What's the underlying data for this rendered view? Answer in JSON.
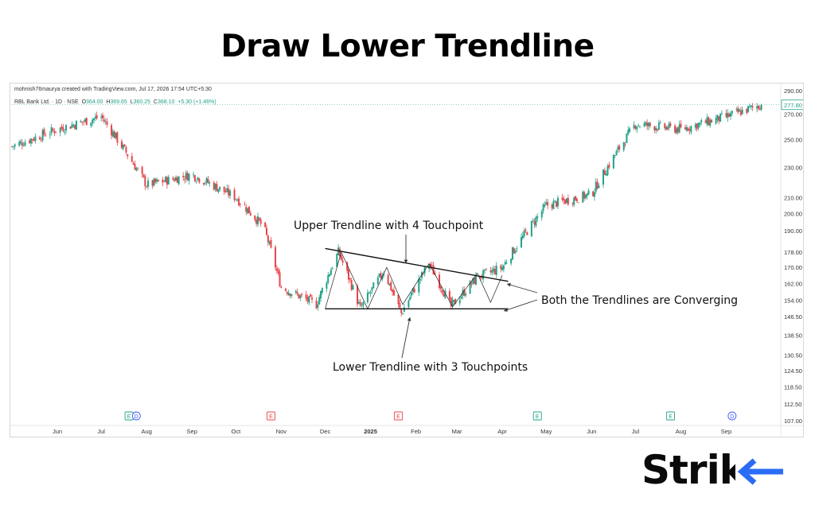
{
  "title": "Draw Lower Trendline",
  "credit": "mohnish76mauryа created with TradingView.com, Jul 17, 2026 17:54 UTC+5:30",
  "symbol": {
    "name": "RBL Bank Ltd. · 1D · NSE",
    "open_label": "O",
    "open": "364.00",
    "high_label": "H",
    "high": "369.65",
    "low_label": "L",
    "low": "360.25",
    "close_label": "C",
    "close": "368.10",
    "change": "+5.30 (+1.46%)"
  },
  "colors": {
    "up": "#22a28a",
    "down": "#e8454a",
    "trendline": "#111111",
    "arrow": "#333333"
  },
  "chart_data": {
    "type": "candlestick",
    "y_scale": "log",
    "ylim": [
      107,
      292
    ],
    "y_ticks": [
      "290.00",
      "270.00",
      "250.00",
      "230.00",
      "210.00",
      "200.00",
      "190.00",
      "178.00",
      "170.00",
      "162.00",
      "154.00",
      "146.50",
      "138.50",
      "130.50",
      "124.50",
      "118.50",
      "112.50",
      "107.00"
    ],
    "x_ticks": [
      "Jun",
      "Jul",
      "Aug",
      "Sep",
      "Oct",
      "Nov",
      "Dec",
      "2025",
      "Feb",
      "Mar",
      "Apr",
      "May",
      "Jun",
      "Jul",
      "Aug",
      "Sep"
    ],
    "last_price_label": "277.80",
    "close_series": [
      {
        "date": "2024-05",
        "close": 245
      },
      {
        "date": "2024-06",
        "close": 258
      },
      {
        "date": "2024-07-01",
        "close": 268
      },
      {
        "date": "2024-08",
        "close": 218
      },
      {
        "date": "2024-09",
        "close": 225
      },
      {
        "date": "2024-10",
        "close": 210
      },
      {
        "date": "2024-10-20",
        "close": 192
      },
      {
        "date": "2024-11",
        "close": 160
      },
      {
        "date": "2024-11-25",
        "close": 152
      },
      {
        "date": "2024-12-10",
        "close": 178
      },
      {
        "date": "2024-12-25",
        "close": 150
      },
      {
        "date": "2025-01-10",
        "close": 168
      },
      {
        "date": "2025-01-22",
        "close": 148
      },
      {
        "date": "2025-02-10",
        "close": 172
      },
      {
        "date": "2025-02-25",
        "close": 151
      },
      {
        "date": "2025-03-15",
        "close": 165
      },
      {
        "date": "2025-04-01",
        "close": 170
      },
      {
        "date": "2025-05",
        "close": 205
      },
      {
        "date": "2025-06",
        "close": 212
      },
      {
        "date": "2025-07",
        "close": 262
      },
      {
        "date": "2025-08",
        "close": 258
      },
      {
        "date": "2025-09",
        "close": 268
      },
      {
        "date": "2025-09-25",
        "close": 277.8
      }
    ],
    "events": [
      {
        "label": "E",
        "date": "2024-07-20",
        "color": "#22a28a"
      },
      {
        "label": "D",
        "date": "2024-07-25",
        "color": "#3d5afe"
      },
      {
        "label": "E",
        "date": "2024-10-25",
        "color": "#e8454a"
      },
      {
        "label": "E",
        "date": "2025-01-20",
        "color": "#e8454a"
      },
      {
        "label": "E",
        "date": "2025-04-25",
        "color": "#22a28a"
      },
      {
        "label": "E",
        "date": "2025-07-25",
        "color": "#22a28a"
      },
      {
        "label": "D",
        "date": "2025-09-05",
        "color": "#3d5afe"
      }
    ],
    "trendlines": [
      {
        "name": "upper",
        "from": {
          "date": "2024-12-01",
          "price": 180
        },
        "to": {
          "date": "2025-04-05",
          "price": 163
        }
      },
      {
        "name": "lower",
        "from": {
          "date": "2024-12-01",
          "price": 150
        },
        "to": {
          "date": "2025-04-05",
          "price": 150
        }
      }
    ]
  },
  "annotations": {
    "upper": "Upper Trendline with 4 Touchpoint",
    "converging": "Both the Trendlines are Converging",
    "lower": "Lower Trendline with 3 Touchpoints"
  },
  "logo": "Strike"
}
